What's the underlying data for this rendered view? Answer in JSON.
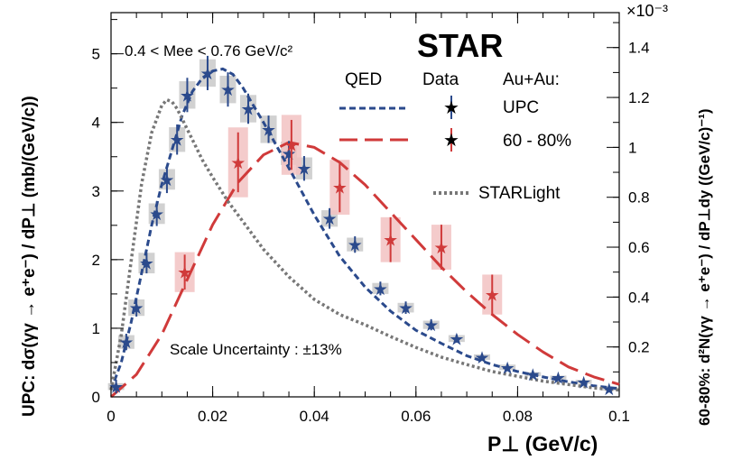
{
  "chart_data": {
    "type": "scatter",
    "title": "STAR",
    "xlabel": "P⊥ (GeV/c)",
    "ylabel_left": "UPC:  dσ(γγ → e⁺e⁻) / dP⊥  (mb/(GeV/c))",
    "ylabel_right": "60-80%:  d²N(γγ → e⁺e⁻) / dP⊥dy  ((GeV/c)⁻¹)",
    "xlim": [
      0,
      0.1
    ],
    "ylim_left": [
      0,
      5.6
    ],
    "ylim_right": [
      0,
      0.00154
    ],
    "right_axis_exponent": "×10⁻³",
    "mass_cut": "0.4 < Mee < 0.76 GeV/c²",
    "scale_uncertainty": "Scale Uncertainty : ±13%",
    "x_ticks": [
      0,
      0.02,
      0.04,
      0.06,
      0.08,
      0.1
    ],
    "x_tick_labels": [
      "0",
      "0.02",
      "0.04",
      "0.06",
      "0.08",
      "0.1"
    ],
    "y_ticks_left": [
      0,
      1,
      2,
      3,
      4,
      5
    ],
    "y_tick_labels_left": [
      "0",
      "1",
      "2",
      "3",
      "4",
      "5"
    ],
    "y_ticks_right": [
      0.0002,
      0.0004,
      0.0006,
      0.0008,
      0.001,
      0.0012,
      0.0014
    ],
    "y_tick_labels_right": [
      "0.2",
      "0.4",
      "0.6",
      "0.8",
      "1",
      "1.2",
      "1.4"
    ],
    "legend": {
      "col_model": "QED",
      "col_data": "Data",
      "col_system": "Au+Au:",
      "upc_label": "UPC",
      "periph_label": "60 - 80%",
      "starlight_label": "STARLight"
    },
    "colors": {
      "upc": "#2b4a8c",
      "periph": "#d03a3a",
      "periph_box": "#f2c2c2",
      "upc_box": "#cccccc",
      "starlight": "#777777"
    },
    "series": [
      {
        "name": "UPC Data",
        "axis": "left",
        "x": [
          0.001,
          0.003,
          0.005,
          0.007,
          0.009,
          0.011,
          0.013,
          0.015,
          0.019,
          0.023,
          0.027,
          0.031,
          0.035,
          0.038,
          0.043,
          0.048,
          0.053,
          0.058,
          0.063,
          0.068,
          0.073,
          0.078,
          0.083,
          0.088,
          0.093,
          0.098
        ],
        "y": [
          0.15,
          0.8,
          1.3,
          1.95,
          2.67,
          3.17,
          3.75,
          4.4,
          4.72,
          4.48,
          4.2,
          3.9,
          3.55,
          3.33,
          2.6,
          2.22,
          1.58,
          1.3,
          1.05,
          0.85,
          0.58,
          0.43,
          0.33,
          0.28,
          0.22,
          0.12
        ],
        "yerr": [
          0.1,
          0.12,
          0.13,
          0.15,
          0.18,
          0.2,
          0.22,
          0.25,
          0.25,
          0.25,
          0.22,
          0.2,
          0.18,
          0.18,
          0.15,
          0.12,
          0.1,
          0.09,
          0.08,
          0.06,
          0.05,
          0.05,
          0.04,
          0.04,
          0.03,
          0.03
        ],
        "sys": [
          0.05,
          0.1,
          0.12,
          0.15,
          0.15,
          0.15,
          0.18,
          0.2,
          0.2,
          0.2,
          0.2,
          0.2,
          0.17,
          0.16,
          0.12,
          0.1,
          0.08,
          0.07,
          0.06,
          0.05,
          0.04,
          0.04,
          0.03,
          0.03,
          0.03,
          0.03
        ]
      },
      {
        "name": "60-80% Data",
        "axis": "right",
        "x": [
          0.0145,
          0.025,
          0.0355,
          0.045,
          0.055,
          0.065,
          0.075
        ],
        "y": [
          0.0005,
          0.00094,
          0.00101,
          0.00084,
          0.00063,
          0.0006,
          0.00041
        ],
        "yerr": [
          7e-05,
          0.00012,
          0.0001,
          0.0001,
          9e-05,
          9e-05,
          8e-05
        ],
        "sys": [
          8e-05,
          0.00014,
          0.00012,
          0.00011,
          9e-05,
          9e-05,
          8e-05
        ]
      },
      {
        "name": "QED UPC",
        "axis": "left",
        "style": "short-dash",
        "x": [
          0,
          0.002,
          0.004,
          0.006,
          0.008,
          0.01,
          0.012,
          0.014,
          0.016,
          0.018,
          0.02,
          0.022,
          0.024,
          0.026,
          0.028,
          0.03,
          0.033,
          0.036,
          0.04,
          0.045,
          0.05,
          0.055,
          0.06,
          0.065,
          0.07,
          0.075,
          0.08,
          0.085,
          0.09,
          0.095,
          0.1
        ],
        "y": [
          0.1,
          0.5,
          1.1,
          1.8,
          2.5,
          3.1,
          3.6,
          4.1,
          4.45,
          4.65,
          4.75,
          4.78,
          4.7,
          4.5,
          4.25,
          4.0,
          3.6,
          3.2,
          2.65,
          2.05,
          1.6,
          1.25,
          0.97,
          0.78,
          0.6,
          0.47,
          0.37,
          0.29,
          0.22,
          0.16,
          0.12
        ]
      },
      {
        "name": "QED 60-80%",
        "axis": "right",
        "style": "long-dash",
        "x": [
          0,
          0.005,
          0.01,
          0.015,
          0.02,
          0.025,
          0.03,
          0.035,
          0.04,
          0.045,
          0.05,
          0.055,
          0.06,
          0.065,
          0.07,
          0.075,
          0.08,
          0.085,
          0.09,
          0.095,
          0.1
        ],
        "y": [
          0.0,
          9e-05,
          0.00025,
          0.00047,
          0.00069,
          0.00086,
          0.00097,
          0.00102,
          0.001,
          0.00094,
          0.00085,
          0.00074,
          0.00063,
          0.00052,
          0.00042,
          0.00033,
          0.00025,
          0.00018,
          0.00012,
          8e-05,
          5e-05
        ]
      },
      {
        "name": "STARLight",
        "axis": "left",
        "style": "dot",
        "x": [
          0,
          0.002,
          0.004,
          0.006,
          0.008,
          0.01,
          0.011,
          0.012,
          0.013,
          0.014,
          0.016,
          0.018,
          0.02,
          0.023,
          0.026,
          0.03,
          0.035,
          0.04,
          0.045,
          0.05,
          0.055,
          0.06,
          0.065,
          0.07,
          0.075,
          0.08,
          0.085,
          0.09,
          0.095,
          0.1
        ],
        "y": [
          0.1,
          0.9,
          2.0,
          3.1,
          3.85,
          4.25,
          4.33,
          4.3,
          4.2,
          4.05,
          3.75,
          3.45,
          3.2,
          2.85,
          2.55,
          2.15,
          1.75,
          1.42,
          1.2,
          1.05,
          0.88,
          0.72,
          0.58,
          0.47,
          0.37,
          0.3,
          0.23,
          0.18,
          0.13,
          0.1
        ]
      }
    ]
  }
}
